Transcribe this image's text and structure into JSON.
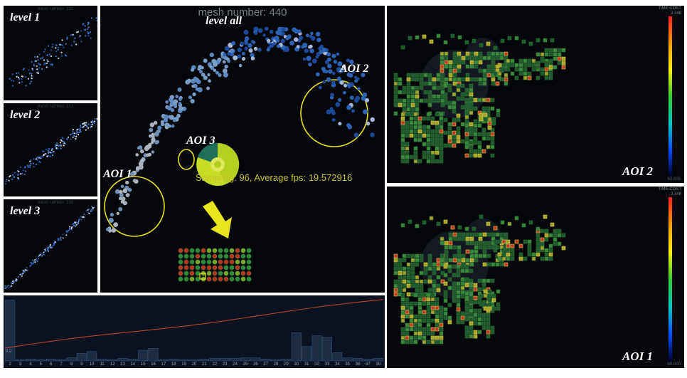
{
  "levels": [
    {
      "label": "level 1",
      "caption": "mesh number: 211"
    },
    {
      "label": "level 2",
      "caption": "mesh number: 213"
    },
    {
      "label": "level 3",
      "caption": "mesh number: 219"
    }
  ],
  "main_view": {
    "title": "mesh number: 440",
    "level_label": "level all",
    "aoi_labels": {
      "aoi1": "AOI 1",
      "aoi2": "AOI 2",
      "aoi3": "AOI 3"
    },
    "sampling_text": "Sampling: 96, Average fps: 19.572916"
  },
  "heatmaps": [
    {
      "label": "AOI 2",
      "scale_max": "2.348",
      "scale_top_caption": "TIME COST",
      "scale_min": "60.000"
    },
    {
      "label": "AOI 1",
      "scale_max": "2.348",
      "scale_top_caption": "TIME COST",
      "scale_min": "60.000"
    }
  ],
  "histogram": {
    "side_label": "0.2",
    "ticks": [
      "2",
      "3",
      "4",
      "5",
      "6",
      "7",
      "8",
      "9",
      "10",
      "11",
      "12",
      "13",
      "14",
      "15",
      "16",
      "17",
      "18",
      "19",
      "20",
      "21",
      "22",
      "23",
      "24",
      "25",
      "26",
      "27",
      "28",
      "29",
      "30",
      "31",
      "32",
      "33",
      "34",
      "35",
      "36",
      "37",
      "38"
    ],
    "bar_levels": [
      0.97,
      0.02,
      0.03,
      0.02,
      0.03,
      0.02,
      0.05,
      0.12,
      0.15,
      0.03,
      0.02,
      0.04,
      0.03,
      0.17,
      0.2,
      0.02,
      0.03,
      0.02,
      0.02,
      0.03,
      0.04,
      0.04,
      0.04,
      0.05,
      0.05,
      0.03,
      0.02,
      0.03,
      0.45,
      0.23,
      0.4,
      0.38,
      0.13,
      0.05,
      0.04,
      0.03,
      0.04
    ]
  },
  "colors": {
    "background": "#05070b",
    "aoi_circle": "#e6e01c",
    "curve": "#b8452a",
    "bars": "#1c2c43"
  }
}
